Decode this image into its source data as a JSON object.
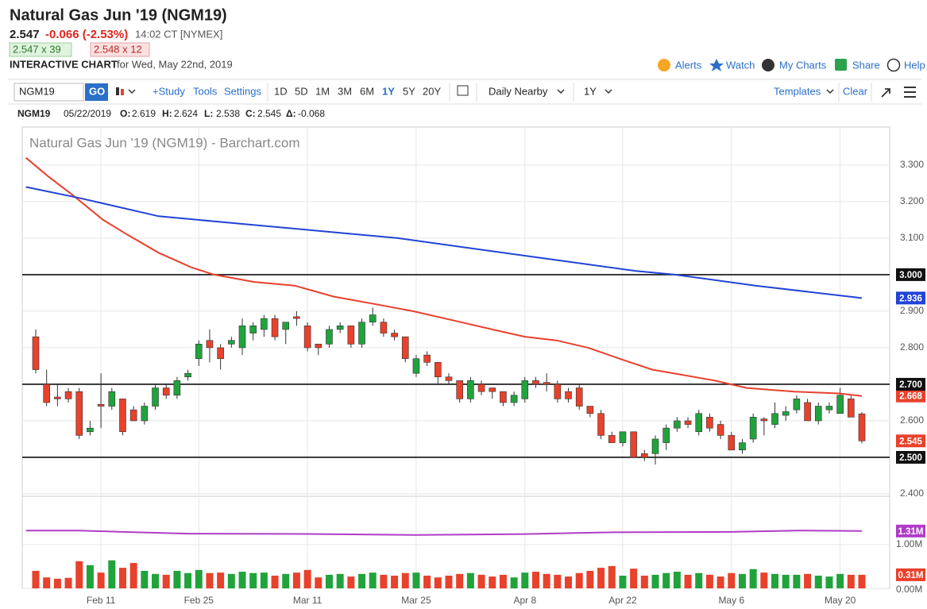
{
  "header": {
    "title": "Natural Gas Jun '19 (NGM19)",
    "last": 2.547,
    "change": "-0.066 (-2.53%)",
    "time": "14:02 CT [NYMEX]",
    "bid": "2.547 x 39",
    "ask": "2.548 x 12",
    "chart_label": "INTERACTIVE CHART",
    "chart_date": "for Wed, May 22nd, 2019"
  },
  "links": [
    "Alerts",
    "Watch",
    "My Charts",
    "Share",
    "Help"
  ],
  "toolbar": {
    "symbol": "NGM19",
    "go": "GO",
    "study": "+Study",
    "tools": "Tools",
    "settings": "Settings",
    "periods": [
      "1D",
      "5D",
      "1M",
      "3M",
      "6M",
      "1Y",
      "5Y",
      "20Y"
    ],
    "selected_period": 5,
    "frequency": "Daily Nearby",
    "range": "1Y",
    "templates": "Templates",
    "clear": "Clear"
  },
  "ohlc_line": {
    "symbol": "NGM19",
    "date": "05/22/2019",
    "items": [
      {
        "label": "O:",
        "value": 2.619
      },
      {
        "label": "H:",
        "value": 2.624
      },
      {
        "label": "L:",
        "value": 2.538
      },
      {
        "label": "C:",
        "value": 2.545
      },
      {
        "label": "Δ:",
        "value": -0.068
      }
    ]
  },
  "chart_data": {
    "type": "candlestick",
    "title": "Natural Gas Jun '19 (NGM19) - Barchart.com",
    "categories": [
      null,
      null,
      null,
      null,
      null,
      null,
      "Feb 11",
      null,
      null,
      null,
      null,
      null,
      null,
      null,
      null,
      "Feb 25",
      null,
      null,
      null,
      null,
      null,
      null,
      null,
      null,
      null,
      "Mar 11",
      null,
      null,
      null,
      null,
      null,
      null,
      null,
      null,
      null,
      "Mar 25",
      null,
      null,
      null,
      null,
      null,
      null,
      null,
      null,
      null,
      "Apr 8",
      null,
      null,
      null,
      null,
      null,
      null,
      null,
      null,
      "Apr 22",
      null,
      null,
      null,
      null,
      null,
      null,
      null,
      null,
      null,
      "May 6",
      null,
      null,
      null,
      null,
      null,
      null,
      null,
      null,
      null,
      "May 20",
      null,
      null
    ],
    "open": [
      2.83,
      2.7,
      2.665,
      2.68,
      2.68,
      2.57,
      2.645,
      2.64,
      2.66,
      2.63,
      2.6,
      2.64,
      2.69,
      2.67,
      2.72,
      2.77,
      2.82,
      2.8,
      2.81,
      2.8,
      2.84,
      2.85,
      2.88,
      2.85,
      2.885,
      2.86,
      2.81,
      2.81,
      2.85,
      2.86,
      2.81,
      2.87,
      2.87,
      2.84,
      2.83,
      2.73,
      2.78,
      2.76,
      2.72,
      2.71,
      2.66,
      2.7,
      2.69,
      2.68,
      2.65,
      2.66,
      2.71,
      2.705,
      2.7,
      2.68,
      2.69,
      2.64,
      2.62,
      2.56,
      2.54,
      2.57,
      2.51,
      2.51,
      2.54,
      2.58,
      2.6,
      2.57,
      2.61,
      2.59,
      2.56,
      2.52,
      2.55,
      2.605,
      2.59,
      2.615,
      2.63,
      2.65,
      2.6,
      2.63,
      2.62,
      2.66,
      2.619
    ],
    "high": [
      2.85,
      2.74,
      2.7,
      2.69,
      2.69,
      2.6,
      2.73,
      2.69,
      2.66,
      2.64,
      2.65,
      2.7,
      2.7,
      2.72,
      2.74,
      2.82,
      2.85,
      2.81,
      2.83,
      2.88,
      2.87,
      2.89,
      2.89,
      2.87,
      2.9,
      2.87,
      2.81,
      2.86,
      2.87,
      2.86,
      2.88,
      2.91,
      2.88,
      2.85,
      2.83,
      2.78,
      2.79,
      2.76,
      2.73,
      2.71,
      2.72,
      2.71,
      2.69,
      2.68,
      2.68,
      2.72,
      2.72,
      2.73,
      2.71,
      2.69,
      2.7,
      2.64,
      2.63,
      2.57,
      2.57,
      2.57,
      2.52,
      2.56,
      2.59,
      2.61,
      2.61,
      2.63,
      2.62,
      2.6,
      2.57,
      2.55,
      2.62,
      2.61,
      2.65,
      2.64,
      2.67,
      2.66,
      2.65,
      2.65,
      2.69,
      2.67,
      2.624
    ],
    "low": [
      2.73,
      2.64,
      2.64,
      2.65,
      2.55,
      2.56,
      2.58,
      2.63,
      2.56,
      2.6,
      2.59,
      2.63,
      2.66,
      2.66,
      2.71,
      2.75,
      2.76,
      2.74,
      2.8,
      2.78,
      2.82,
      2.83,
      2.82,
      2.81,
      2.86,
      2.79,
      2.78,
      2.8,
      2.84,
      2.8,
      2.8,
      2.86,
      2.83,
      2.82,
      2.76,
      2.72,
      2.75,
      2.7,
      2.7,
      2.65,
      2.65,
      2.67,
      2.66,
      2.64,
      2.64,
      2.65,
      2.69,
      2.68,
      2.65,
      2.65,
      2.63,
      2.61,
      2.55,
      2.54,
      2.53,
      2.5,
      2.49,
      2.48,
      2.52,
      2.57,
      2.58,
      2.56,
      2.57,
      2.55,
      2.52,
      2.51,
      2.54,
      2.56,
      2.58,
      2.6,
      2.62,
      2.6,
      2.59,
      2.62,
      2.62,
      2.61,
      2.538
    ],
    "close": [
      2.74,
      2.65,
      2.66,
      2.66,
      2.56,
      2.58,
      2.64,
      2.68,
      2.57,
      2.6,
      2.64,
      2.69,
      2.67,
      2.71,
      2.73,
      2.81,
      2.8,
      2.77,
      2.82,
      2.86,
      2.86,
      2.88,
      2.83,
      2.87,
      2.88,
      2.8,
      2.8,
      2.85,
      2.86,
      2.81,
      2.87,
      2.89,
      2.84,
      2.83,
      2.77,
      2.77,
      2.76,
      2.72,
      2.71,
      2.66,
      2.71,
      2.68,
      2.68,
      2.65,
      2.67,
      2.71,
      2.7,
      2.7,
      2.66,
      2.66,
      2.64,
      2.62,
      2.56,
      2.54,
      2.57,
      2.5,
      2.5,
      2.55,
      2.58,
      2.6,
      2.59,
      2.62,
      2.58,
      2.56,
      2.52,
      2.54,
      2.61,
      2.6,
      2.62,
      2.625,
      2.66,
      2.6,
      2.64,
      2.64,
      2.67,
      2.61,
      2.545
    ],
    "up_color": "#21a33c",
    "down_color": "#e8412c",
    "last_label": "2.545",
    "ylim": [
      2.4,
      3.404
    ],
    "yticks": [
      {
        "value": 2.4,
        "label": "2.400"
      },
      {
        "value": 2.5,
        "label": "2.500"
      },
      {
        "value": 2.6,
        "label": "2.600"
      },
      {
        "value": 2.7,
        "label": "2.700"
      },
      {
        "value": 2.8,
        "label": "2.800"
      },
      {
        "value": 2.9,
        "label": "2.900"
      },
      {
        "value": 3.0,
        "label": "3.000"
      },
      {
        "value": 3.1,
        "label": "3.100"
      },
      {
        "value": 3.2,
        "label": "3.200"
      },
      {
        "value": 3.3,
        "label": "3.300"
      }
    ],
    "grid": true,
    "levels": [
      {
        "value": 3.0,
        "label": "3.000"
      },
      {
        "value": 2.7,
        "label": "2.700"
      },
      {
        "value": 2.5,
        "label": "2.500"
      }
    ],
    "overlays": [
      {
        "color": "#e8412c",
        "x": [
          -0.9,
          1.1,
          3.3,
          6.2,
          8.4,
          11.3,
          14.3,
          16.4,
          20.1,
          23.8,
          27.4,
          31.1,
          34.7,
          39.1,
          42,
          45,
          47.9,
          50.8,
          53.7,
          56.7,
          59.6,
          62.5,
          65.4,
          69.8,
          73.9,
          76
        ],
        "values": [
          3.32,
          3.27,
          3.22,
          3.15,
          3.11,
          3.06,
          3.02,
          3.0,
          2.98,
          2.97,
          2.94,
          2.92,
          2.9,
          2.87,
          2.85,
          2.83,
          2.82,
          2.8,
          2.77,
          2.74,
          2.725,
          2.71,
          2.69,
          2.68,
          2.675,
          2.668
        ],
        "end_label": "2.668"
      },
      {
        "color": "#2243d6",
        "x": [
          -0.9,
          4,
          11.3,
          18.6,
          26,
          33.3,
          40.6,
          47.9,
          55.2,
          58.8,
          66.2,
          76
        ],
        "values": [
          3.24,
          3.21,
          3.16,
          3.14,
          3.12,
          3.1,
          3.07,
          3.04,
          3.01,
          3.0,
          2.97,
          2.936
        ],
        "end_label": "2.936"
      }
    ],
    "volume": {
      "values": [
        0.4,
        0.25,
        0.22,
        0.24,
        0.62,
        0.53,
        0.36,
        0.64,
        0.47,
        0.58,
        0.4,
        0.33,
        0.31,
        0.4,
        0.35,
        0.42,
        0.35,
        0.36,
        0.33,
        0.38,
        0.35,
        0.36,
        0.29,
        0.33,
        0.36,
        0.42,
        0.25,
        0.31,
        0.33,
        0.27,
        0.33,
        0.36,
        0.31,
        0.29,
        0.35,
        0.36,
        0.29,
        0.25,
        0.29,
        0.33,
        0.35,
        0.31,
        0.27,
        0.31,
        0.25,
        0.36,
        0.38,
        0.33,
        0.31,
        0.27,
        0.35,
        0.4,
        0.47,
        0.51,
        0.29,
        0.45,
        0.29,
        0.31,
        0.35,
        0.38,
        0.31,
        0.35,
        0.31,
        0.27,
        0.35,
        0.33,
        0.44,
        0.36,
        0.33,
        0.31,
        0.31,
        0.33,
        0.29,
        0.27,
        0.33,
        0.31,
        0.31
      ],
      "last_label": "0.31M",
      "ylim": [
        0,
        2.05
      ],
      "yticks": [
        {
          "value": 0,
          "label": "0.00M"
        },
        {
          "value": 1,
          "label": "1.00M"
        }
      ],
      "average": {
        "color": "#b03cc8",
        "x": [
          -0.9,
          4,
          8,
          14,
          26,
          35,
          45,
          53,
          64,
          70,
          76
        ],
        "values": [
          1.32,
          1.32,
          1.29,
          1.25,
          1.24,
          1.22,
          1.24,
          1.28,
          1.29,
          1.32,
          1.31
        ],
        "end_label": "1.31M"
      }
    }
  }
}
